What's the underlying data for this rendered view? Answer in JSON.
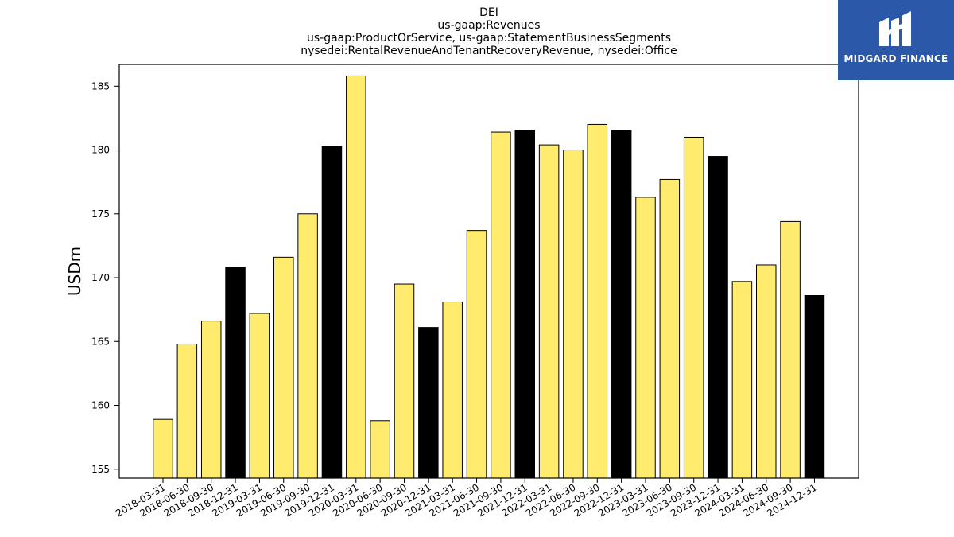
{
  "chart_data": {
    "type": "bar",
    "title_lines": [
      "DEI",
      "us-gaap:Revenues",
      "us-gaap:ProductOrService, us-gaap:StatementBusinessSegments",
      "nysedei:RentalRevenueAndTenantRecoveryRevenue, nysedei:Office"
    ],
    "xlabel": "",
    "ylabel": "USDm",
    "ylim": [
      154.3,
      186.7
    ],
    "yticks": [
      155,
      160,
      165,
      170,
      175,
      180,
      185
    ],
    "categories": [
      "2018-03-31",
      "2018-06-30",
      "2018-09-30",
      "2018-12-31",
      "2019-03-31",
      "2019-06-30",
      "2019-09-30",
      "2019-12-31",
      "2020-03-31",
      "2020-06-30",
      "2020-09-30",
      "2020-12-31",
      "2021-03-31",
      "2021-06-30",
      "2021-09-30",
      "2021-12-31",
      "2022-03-31",
      "2022-06-30",
      "2022-09-30",
      "2022-12-31",
      "2023-03-31",
      "2023-06-30",
      "2023-09-30",
      "2023-12-31",
      "2024-03-31",
      "2024-06-30",
      "2024-09-30",
      "2024-12-31"
    ],
    "values": [
      158.9,
      164.8,
      166.6,
      170.8,
      167.2,
      171.6,
      175.0,
      180.3,
      185.8,
      158.8,
      169.5,
      166.1,
      168.1,
      173.7,
      181.4,
      181.5,
      180.4,
      180.0,
      182.0,
      181.5,
      176.3,
      177.7,
      181.0,
      179.5,
      169.7,
      171.0,
      174.4,
      168.6
    ],
    "bar_colors": {
      "quarter": "#ffeb6e",
      "year_end": "#000000",
      "edge": "#000000"
    },
    "grid": false
  },
  "logo": {
    "text": "MIDGARD FINANCE",
    "background": "#2b58a8"
  }
}
